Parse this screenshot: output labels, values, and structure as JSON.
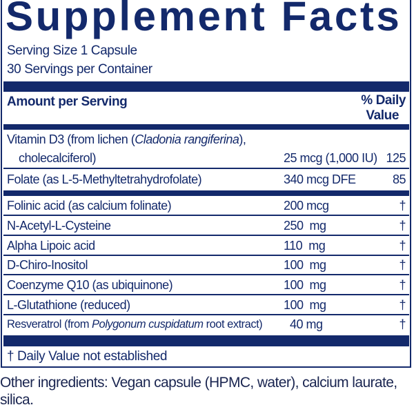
{
  "title": "Supplement Facts",
  "serving_size": "Serving Size 1 Capsule",
  "servings_per_container": "30 Servings per Container",
  "header": {
    "amount": "Amount per Serving",
    "dv_line1": "% Daily",
    "dv_line2": "Value"
  },
  "vitamin_d": {
    "name_pre": "Vitamin D3 (from lichen (",
    "name_italic": "Cladonia rangiferina",
    "name_post": "),",
    "name_line2": "cholecalciferol)",
    "amount": "25 mcg (1,000 IU)",
    "dv": "125"
  },
  "folate": {
    "name": "Folate (as L-5-Methyltetrahydrofolate)",
    "amount": "340 mcg DFE",
    "dv": "85"
  },
  "rows": [
    {
      "name": "Folinic acid (as calcium folinate)",
      "amount": "200 mcg",
      "dv": "†"
    },
    {
      "name": "N-Acetyl-L-Cysteine",
      "amount": "250  mg",
      "dv": "†"
    },
    {
      "name": "Alpha Lipoic acid",
      "amount": "110  mg",
      "dv": "†"
    },
    {
      "name": "D-Chiro-Inositol",
      "amount": "100  mg",
      "dv": "†"
    },
    {
      "name": "Coenzyme Q10 (as ubiquinone)",
      "amount": "100  mg",
      "dv": "†"
    },
    {
      "name": "L-Glutathione (reduced)",
      "amount": "100  mg",
      "dv": "†"
    }
  ],
  "resveratrol": {
    "name_pre": "Resveratrol (from ",
    "name_italic": "Polygonum cuspidatum",
    "name_post": " root extract)",
    "amount": "40  mg",
    "dv": "†"
  },
  "footnote": "† Daily Value not established",
  "other_ingredients": "Other ingredients: Vegan capsule (HPMC, water), calcium laurate, silica.",
  "colors": {
    "navy": "#13296b"
  }
}
